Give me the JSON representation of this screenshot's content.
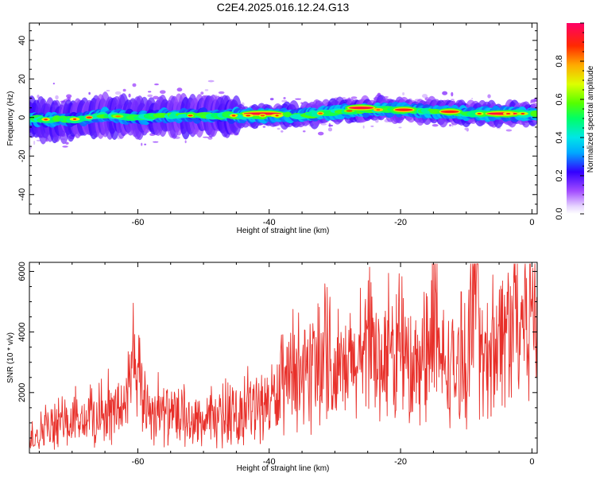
{
  "title": "C2E4.2025.016.12.24.G13",
  "chart_data": [
    {
      "type": "heatmap",
      "xlabel": "Height of straight line (km)",
      "ylabel": "Frequency (Hz)",
      "xlim": [
        -76.5,
        0.8
      ],
      "ylim": [
        -50,
        49
      ],
      "x_ticks": [
        "-60",
        "-40",
        "-20",
        "0"
      ],
      "y_ticks": [
        "40",
        "20",
        "0",
        "-20",
        "-40"
      ],
      "colorbar": {
        "label": "Normalized spectral amplitude",
        "range": [
          0,
          1
        ],
        "ticks": [
          "0.0",
          "0.2",
          "0.4",
          "0.6",
          "0.8"
        ]
      },
      "ridge_center_frequency": {
        "x": [
          -76,
          -70,
          -65,
          -60,
          -55,
          -50,
          -45,
          -40,
          -35,
          -30,
          -25,
          -20,
          -15,
          -10,
          -5,
          0
        ],
        "y": [
          -1,
          -1,
          1,
          0,
          1,
          1,
          1,
          1,
          1,
          3,
          4,
          4,
          3,
          2,
          2,
          2
        ]
      },
      "high_amplitude_segments": [
        {
          "x": [
            -44,
            -38
          ],
          "y": 2,
          "amplitude": 1.0
        },
        {
          "x": [
            -28,
            -24
          ],
          "y": 5,
          "amplitude": 1.0
        },
        {
          "x": [
            -21,
            -18
          ],
          "y": 4,
          "amplitude": 0.95
        },
        {
          "x": [
            -14,
            -11
          ],
          "y": 3,
          "amplitude": 0.95
        },
        {
          "x": [
            -7,
            -2
          ],
          "y": 2,
          "amplitude": 1.0
        }
      ]
    },
    {
      "type": "line",
      "xlabel": "Height of straight line (km)",
      "ylabel": "SNR (10 * v/v)",
      "xlim": [
        -76.5,
        0.8
      ],
      "ylim": [
        0,
        6300
      ],
      "x_ticks": [
        "-60",
        "-40",
        "-20",
        "0"
      ],
      "y_ticks": [
        "6000",
        "4000",
        "2000"
      ],
      "series": [
        {
          "color": "#e8302a",
          "x": [
            -76,
            -74,
            -72,
            -70,
            -68,
            -66,
            -64,
            -62,
            -61,
            -60,
            -59,
            -58,
            -56,
            -54,
            -52,
            -50,
            -48,
            -46,
            -44,
            -42,
            -40,
            -38,
            -36,
            -34,
            -32,
            -31,
            -30,
            -28,
            -26,
            -24,
            -22,
            -20,
            -18,
            -16,
            -15,
            -14,
            -12,
            -10,
            -9,
            -8.5,
            -8,
            -7,
            -6,
            -4,
            -2,
            0,
            0.8
          ],
          "y": [
            600,
            800,
            900,
            1000,
            1100,
            1200,
            1300,
            1600,
            2600,
            2300,
            1800,
            1400,
            1300,
            1100,
            1000,
            1000,
            1100,
            1100,
            1300,
            1500,
            1700,
            2000,
            2400,
            2500,
            2400,
            3300,
            2200,
            2800,
            3000,
            3100,
            3200,
            3000,
            2600,
            2800,
            3900,
            3000,
            2800,
            2600,
            4200,
            6000,
            3300,
            3000,
            3700,
            4100,
            4500,
            4700,
            4400
          ]
        }
      ]
    }
  ]
}
